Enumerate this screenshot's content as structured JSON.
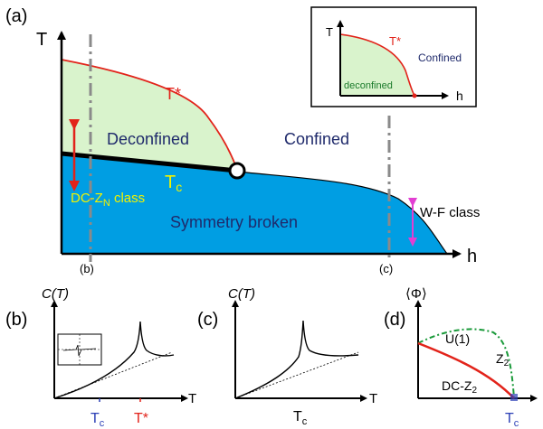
{
  "colors": {
    "deconfined_fill": "#d9f3cc",
    "broken_fill": "#009ee3",
    "boundary_red": "#e2231a",
    "arrow_red": "#e2231a",
    "arrow_magenta": "#e23fd2",
    "label_navy": "#1f2a6b",
    "label_yellow": "#f2f200",
    "u1_green": "#1a9a3a",
    "tick_blue": "#2b3fb6"
  },
  "panel_a": {
    "tag": "(a)",
    "axis_T": "T",
    "axis_h": "h",
    "T_star": "T*",
    "deconfined": "Deconfined",
    "confined": "Confined",
    "Tc": "T",
    "Tc_sub": "c",
    "dc_class_pre": "DC-Z",
    "dc_class_sub": "N",
    "dc_class_post": " class",
    "wf_class": "W-F class",
    "symmetry_broken": "Symmetry broken",
    "cut_b": "(b)",
    "cut_c": "(c)",
    "inset": {
      "axis_T": "T",
      "axis_h": "h",
      "T_star": "T*",
      "confined": "Confined",
      "deconfined": "deconfined"
    }
  },
  "panel_b": {
    "tag": "(b)",
    "ylabel": "C(T)",
    "xlabel": "T",
    "tick_Tc": "T",
    "tick_Tc_sub": "c",
    "tick_Tstar": "T*"
  },
  "panel_c": {
    "tag": "(c)",
    "ylabel": "C(T)",
    "xlabel": "T",
    "tick_Tc": "T",
    "tick_Tc_sub": "c"
  },
  "panel_d": {
    "tag": "(d)",
    "ylabel": "⟨Φ⟩",
    "u1": "U(1)",
    "z2_pre": "Z",
    "z2_sub": "2",
    "dc_pre": "DC-Z",
    "dc_sub": "2",
    "tick_Tc": "T",
    "tick_Tc_sub": "c"
  }
}
